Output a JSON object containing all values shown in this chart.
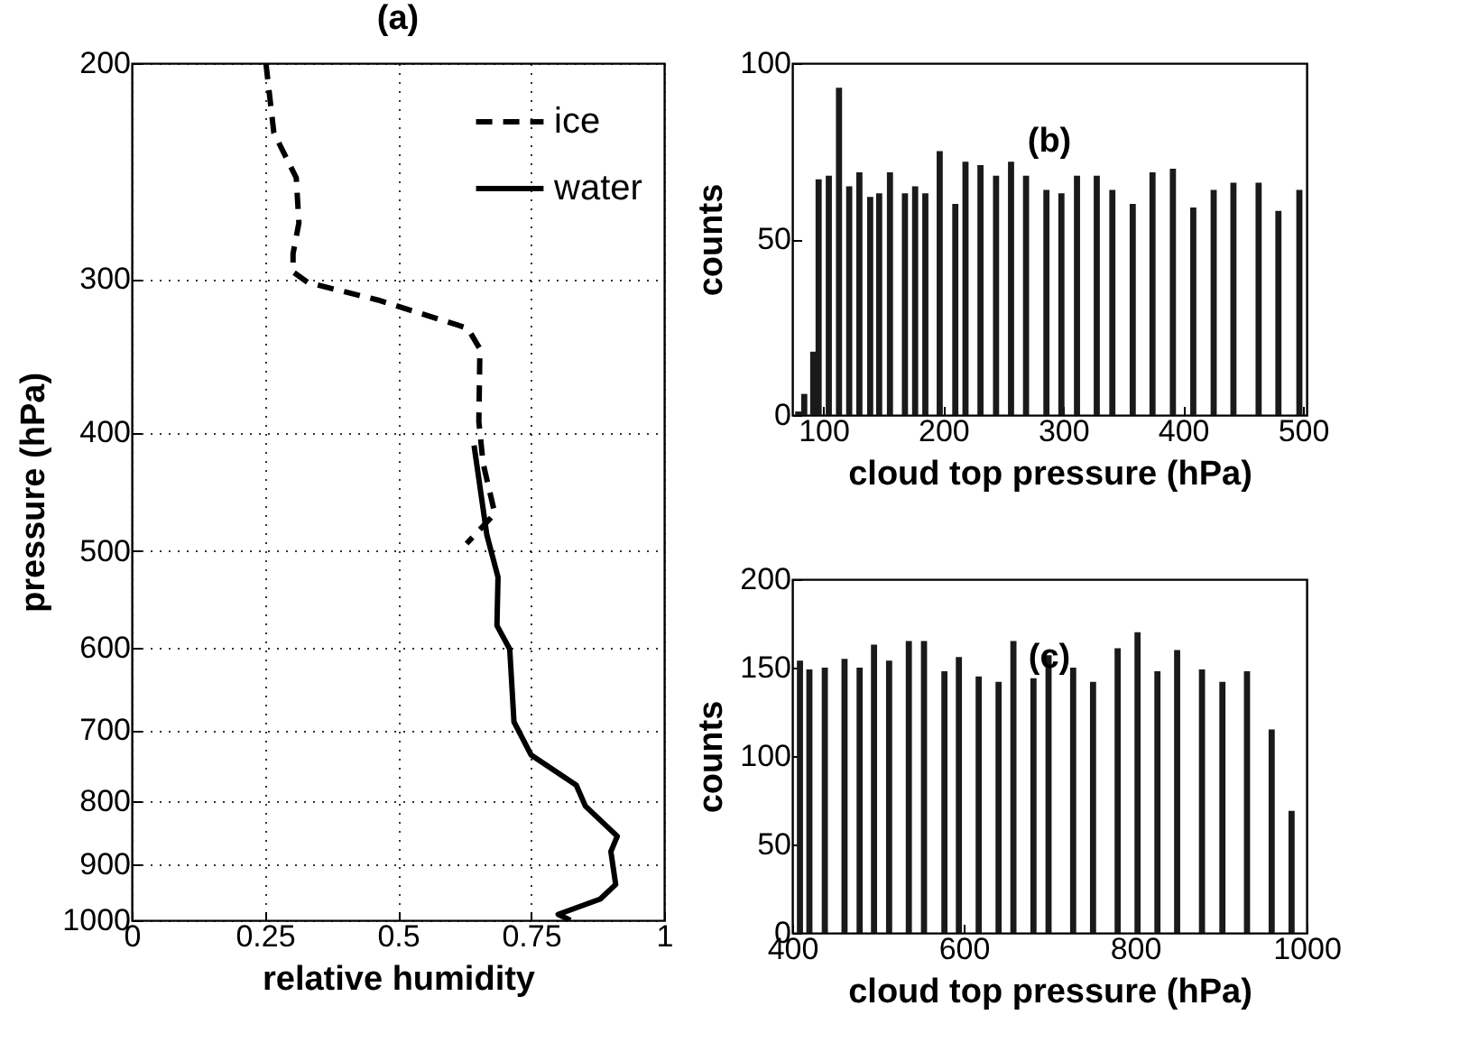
{
  "chart_data": [
    {
      "type": "line",
      "title": "(a)",
      "xlabel": "relative humidity",
      "ylabel": "pressure (hPa)",
      "log": "y",
      "grid": true,
      "legend": "top right",
      "marker": "none",
      "xlim": [
        0,
        1
      ],
      "xticks": [
        0,
        0.25,
        0.5,
        0.75,
        1
      ],
      "ylim": [
        1000,
        200
      ],
      "yticks": [
        200,
        300,
        400,
        500,
        600,
        700,
        800,
        900,
        1000
      ],
      "series": [
        {
          "name": "ice",
          "color": "#000000",
          "line_style": "dashed",
          "x": [
            0.252,
            0.267,
            0.309,
            0.314,
            0.303,
            0.303,
            0.331,
            0.462,
            0.631,
            0.654,
            0.652,
            0.66,
            0.682,
            0.629
          ],
          "values": [
            200,
            228,
            248,
            270,
            286,
            296,
            302,
            312,
            329,
            342,
            392,
            424,
            466,
            493
          ]
        },
        {
          "name": "water",
          "color": "#000000",
          "line_style": "solid",
          "x": [
            0.643,
            0.667,
            0.688,
            0.686,
            0.71,
            0.718,
            0.75,
            0.835,
            0.852,
            0.912,
            0.9,
            0.909,
            0.88,
            0.801,
            0.824
          ],
          "values": [
            410,
            485,
            525,
            575,
            601,
            689,
            733,
            776,
            807,
            854,
            879,
            935,
            961,
            989,
            1000
          ]
        }
      ]
    },
    {
      "type": "bar",
      "title": "(b)",
      "xlabel": "cloud top pressure (hPa)",
      "ylabel": "counts",
      "xlim": [
        74,
        503
      ],
      "xticks": [
        100,
        200,
        300,
        400,
        500
      ],
      "ylim": [
        0,
        100
      ],
      "yticks": [
        0,
        50,
        100
      ],
      "x": [
        79,
        84,
        91.5,
        96,
        104.5,
        113,
        121.5,
        130,
        139,
        146.5,
        155.5,
        168,
        176.5,
        185,
        197,
        210,
        218.5,
        231,
        244,
        256.5,
        269,
        286,
        298.5,
        311.5,
        328,
        341,
        358,
        374.5,
        391.5,
        408.5,
        425.5,
        442,
        463,
        479.5,
        497
      ],
      "series": [
        {
          "color": "#1a1a1a",
          "values": [
            1,
            6,
            18,
            67,
            68,
            93,
            65,
            69,
            62,
            63,
            69,
            63,
            65,
            63,
            75,
            60,
            72,
            71,
            68,
            72,
            68,
            64,
            63,
            68,
            68,
            64,
            60,
            69,
            70,
            59,
            64,
            66,
            66,
            58,
            64
          ]
        }
      ]
    },
    {
      "type": "bar",
      "title": "(c)",
      "xlabel": "cloud top pressure (hPa)",
      "ylabel": "counts",
      "xlim": [
        400,
        1000
      ],
      "xticks": [
        400,
        600,
        800,
        1000
      ],
      "ylim": [
        0,
        200
      ],
      "yticks": [
        0,
        50,
        100,
        150,
        200
      ],
      "x": [
        409,
        420,
        438,
        461,
        478.6,
        495.4,
        513,
        536,
        553.7,
        577.5,
        594.4,
        617.5,
        640.7,
        658,
        681.4,
        699,
        727.7,
        750.9,
        779.6,
        802.8,
        826,
        849,
        878,
        901.8,
        930.5,
        959.3,
        982.5
      ],
      "series": [
        {
          "color": "#1a1a1a",
          "values": [
            154,
            149,
            150,
            155,
            150,
            163,
            154,
            165,
            165,
            148,
            156,
            145,
            142,
            165,
            144,
            157,
            150,
            142,
            161,
            170,
            148,
            160,
            149,
            142,
            148,
            115,
            69
          ]
        }
      ]
    }
  ]
}
